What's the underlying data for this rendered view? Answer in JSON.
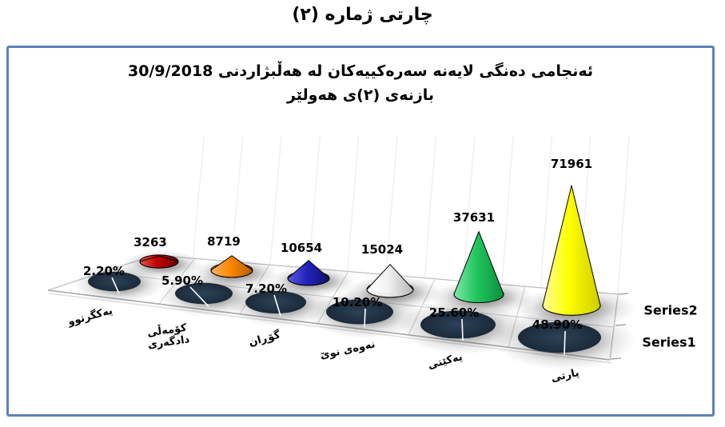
{
  "page_title": "چارتی ژماره (٢)",
  "chart": {
    "title_line1": "ئەنجامی دەنگی لایەنە سەرەکییەکان لە هەڵبژاردنی 30/9/2018",
    "title_line2": "بازنەی (٢)ی هەولێر",
    "border_color": "#5b83b8"
  },
  "chart_data": {
    "type": "cone-3d",
    "title": "ئەنجامی دەنگی لایەنە سەرەکییەکان لە هەڵبژاردنی 30/9/2018 بازنەی (٢)ی هەولێر",
    "categories": [
      "یەکگرتوو",
      "کۆمەڵی\nدادگەری",
      "گۆڕان",
      "نەوەی نوێ",
      "یەکێتی",
      "پارتی"
    ],
    "series": [
      {
        "name": "Series1",
        "marker": "flat-ellipse",
        "marker_color": "#20304a",
        "labels": [
          "2.20%",
          "5.90%",
          "7.20%",
          "10.20%",
          "25.60%",
          "48.90%"
        ],
        "values": [
          2.2,
          5.9,
          7.2,
          10.2,
          25.6,
          48.9
        ]
      },
      {
        "name": "Series2",
        "marker": "cone",
        "values": [
          3263,
          8719,
          10654,
          15024,
          37631,
          71961
        ],
        "colors": [
          "#c00000",
          "#ff8800",
          "#2323be",
          "#ffffff",
          "#22c55e",
          "#ffff00"
        ]
      }
    ],
    "legend_position": "right",
    "legend_entries": [
      "Series2",
      "Series1"
    ],
    "gridlines": true,
    "value_axis_max": 71961
  }
}
